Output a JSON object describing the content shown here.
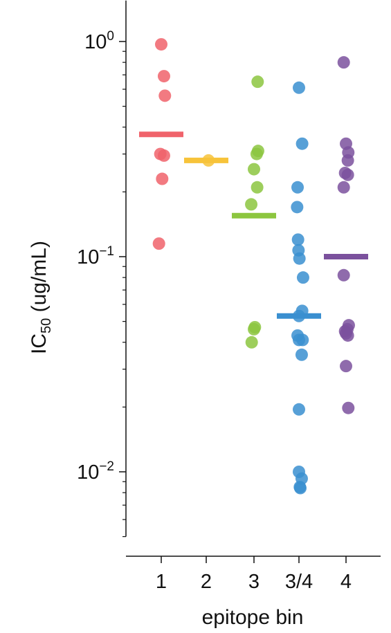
{
  "chart_data": {
    "type": "scatter",
    "title": "",
    "xlabel": "epitope bin",
    "ylabel": {
      "main": "IC",
      "sub": "50",
      "rest": " (ug/mL)"
    },
    "yscale": "log",
    "ylim": [
      0.005,
      1.55
    ],
    "categories": [
      "1",
      "2",
      "3",
      "3/4",
      "4"
    ],
    "y_ticks": [
      {
        "value": 1,
        "base": "10",
        "exp": "0"
      },
      {
        "value": 0.1,
        "base": "10",
        "exp": "−1"
      },
      {
        "value": 0.01,
        "base": "10",
        "exp": "−2"
      }
    ],
    "grid": false,
    "legend": "none",
    "series": [
      {
        "category": "1",
        "color": "#f0636b",
        "median": 0.37,
        "points": [
          {
            "y": 0.97,
            "jitter": 0.0
          },
          {
            "y": 0.69,
            "jitter": 0.06
          },
          {
            "y": 0.56,
            "jitter": 0.08
          },
          {
            "y": 0.3,
            "jitter": -0.02
          },
          {
            "y": 0.295,
            "jitter": 0.06
          },
          {
            "y": 0.23,
            "jitter": 0.02
          },
          {
            "y": 0.115,
            "jitter": -0.05
          }
        ]
      },
      {
        "category": "2",
        "color": "#f7c33a",
        "median": 0.28,
        "points": [
          {
            "y": 0.28,
            "jitter": 0.05
          }
        ]
      },
      {
        "category": "3",
        "color": "#8cc63f",
        "median": 0.155,
        "points": [
          {
            "y": 0.65,
            "jitter": 0.08
          },
          {
            "y": 0.31,
            "jitter": 0.09
          },
          {
            "y": 0.3,
            "jitter": 0.06
          },
          {
            "y": 0.255,
            "jitter": 0.0
          },
          {
            "y": 0.21,
            "jitter": 0.07
          },
          {
            "y": 0.175,
            "jitter": -0.06
          },
          {
            "y": 0.047,
            "jitter": 0.02
          },
          {
            "y": 0.046,
            "jitter": 0.0
          },
          {
            "y": 0.04,
            "jitter": -0.05
          }
        ]
      },
      {
        "category": "3/4",
        "color": "#3a8fd0",
        "median": 0.053,
        "points": [
          {
            "y": 0.61,
            "jitter": 0.0
          },
          {
            "y": 0.335,
            "jitter": 0.07
          },
          {
            "y": 0.21,
            "jitter": -0.03
          },
          {
            "y": 0.17,
            "jitter": -0.04
          },
          {
            "y": 0.12,
            "jitter": -0.02
          },
          {
            "y": 0.107,
            "jitter": -0.01
          },
          {
            "y": 0.098,
            "jitter": 0.01
          },
          {
            "y": 0.08,
            "jitter": 0.09
          },
          {
            "y": 0.056,
            "jitter": 0.07
          },
          {
            "y": 0.053,
            "jitter": 0.0
          },
          {
            "y": 0.043,
            "jitter": -0.03
          },
          {
            "y": 0.041,
            "jitter": 0.0
          },
          {
            "y": 0.041,
            "jitter": 0.08
          },
          {
            "y": 0.035,
            "jitter": 0.06
          },
          {
            "y": 0.0195,
            "jitter": 0.0
          },
          {
            "y": 0.01,
            "jitter": 0.0
          },
          {
            "y": 0.0093,
            "jitter": 0.06
          },
          {
            "y": 0.0085,
            "jitter": 0.02
          },
          {
            "y": 0.0084,
            "jitter": 0.03
          }
        ]
      },
      {
        "category": "4",
        "color": "#7b519d",
        "median": 0.1,
        "points": [
          {
            "y": 0.8,
            "jitter": -0.05
          },
          {
            "y": 0.335,
            "jitter": 0.0
          },
          {
            "y": 0.305,
            "jitter": 0.05
          },
          {
            "y": 0.28,
            "jitter": 0.04
          },
          {
            "y": 0.245,
            "jitter": -0.02
          },
          {
            "y": 0.24,
            "jitter": 0.04
          },
          {
            "y": 0.21,
            "jitter": -0.05
          },
          {
            "y": 0.082,
            "jitter": -0.05
          },
          {
            "y": 0.048,
            "jitter": 0.06
          },
          {
            "y": 0.046,
            "jitter": 0.03
          },
          {
            "y": 0.045,
            "jitter": -0.02
          },
          {
            "y": 0.044,
            "jitter": 0.0
          },
          {
            "y": 0.043,
            "jitter": 0.04
          },
          {
            "y": 0.031,
            "jitter": 0.0
          },
          {
            "y": 0.0198,
            "jitter": 0.05
          }
        ]
      }
    ]
  }
}
